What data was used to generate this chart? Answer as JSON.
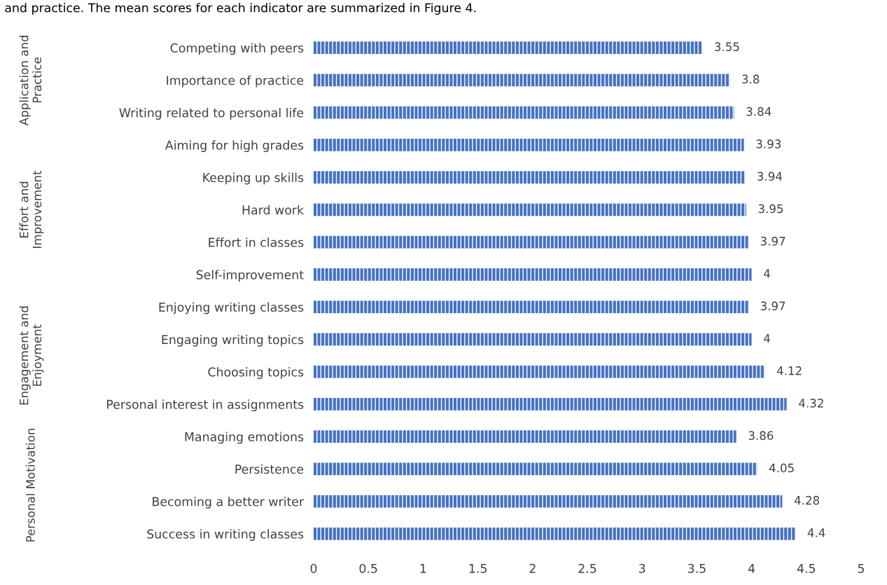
{
  "chart_data": {
    "type": "bar",
    "orientation": "horizontal",
    "categories": [
      "Competing with peers",
      "Importance of practice",
      "Writing related to personal life",
      "Aiming for high grades",
      "Keeping up skills",
      "Hard work",
      "Effort in classes",
      "Self-improvement",
      "Enjoying writing classes",
      "Engaging writing topics",
      "Choosing topics",
      "Personal interest in assignments",
      "Managing emotions",
      "Persistence",
      "Becoming a better writer",
      "Success in writing classes"
    ],
    "values": [
      3.55,
      3.8,
      3.84,
      3.93,
      3.94,
      3.95,
      3.97,
      4,
      3.97,
      4,
      4.12,
      4.32,
      3.86,
      4.05,
      4.28,
      4.4
    ],
    "color": "#4472c4",
    "xlim": [
      0,
      5
    ],
    "xticks": [
      0,
      0.5,
      1,
      1.5,
      2,
      2.5,
      3,
      3.5,
      4,
      4.5,
      5
    ],
    "data_labels": true,
    "grid": false,
    "legend": false,
    "annotations": [
      "and practice. The mean scores for each indicator are summarized in Figure 4.",
      "Application and Practice",
      "Effort and Improvement",
      "Engagement and Enjoyment",
      "Personal Motivation"
    ]
  }
}
